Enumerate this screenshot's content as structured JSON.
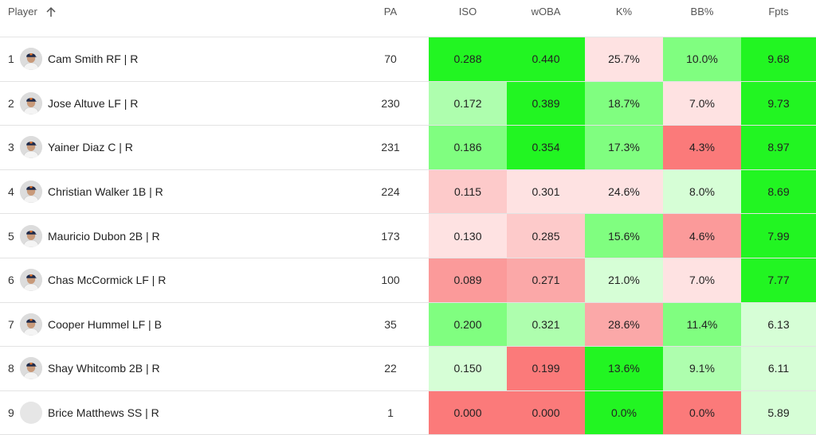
{
  "columns": {
    "player": "Player",
    "pa": "PA",
    "iso": "ISO",
    "woba": "wOBA",
    "k": "K%",
    "bb": "BB%",
    "fpts": "Fpts"
  },
  "rows": [
    {
      "rank": "1",
      "name": "Cam Smith RF | R",
      "pa": "70",
      "iso": "0.288",
      "woba": "0.440",
      "k": "25.7%",
      "bb": "10.0%",
      "fpts": "9.68",
      "has_photo": true,
      "colors": {
        "iso": "#22f522",
        "woba": "#22f522",
        "k": "#fee2e2",
        "bb": "#80fe80",
        "fpts": "#22f522"
      }
    },
    {
      "rank": "2",
      "name": "Jose Altuve LF | R",
      "pa": "230",
      "iso": "0.172",
      "woba": "0.389",
      "k": "18.7%",
      "bb": "7.0%",
      "fpts": "9.73",
      "has_photo": true,
      "colors": {
        "iso": "#aefeae",
        "woba": "#22f522",
        "k": "#80fe80",
        "bb": "#fee2e2",
        "fpts": "#22f522"
      }
    },
    {
      "rank": "3",
      "name": "Yainer Diaz C | R",
      "pa": "231",
      "iso": "0.186",
      "woba": "0.354",
      "k": "17.3%",
      "bb": "4.3%",
      "fpts": "8.97",
      "has_photo": true,
      "colors": {
        "iso": "#80fe80",
        "woba": "#22f522",
        "k": "#80fe80",
        "bb": "#fb7a7a",
        "fpts": "#22f522"
      }
    },
    {
      "rank": "4",
      "name": "Christian Walker 1B | R",
      "pa": "224",
      "iso": "0.115",
      "woba": "0.301",
      "k": "24.6%",
      "bb": "8.0%",
      "fpts": "8.69",
      "has_photo": true,
      "colors": {
        "iso": "#fdcaca",
        "woba": "#fee2e2",
        "k": "#fee2e2",
        "bb": "#d6fed6",
        "fpts": "#22f522"
      }
    },
    {
      "rank": "5",
      "name": "Mauricio Dubon 2B | R",
      "pa": "173",
      "iso": "0.130",
      "woba": "0.285",
      "k": "15.6%",
      "bb": "4.6%",
      "fpts": "7.99",
      "has_photo": true,
      "colors": {
        "iso": "#fee2e2",
        "woba": "#fdcaca",
        "k": "#80fe80",
        "bb": "#fb9a9a",
        "fpts": "#22f522"
      }
    },
    {
      "rank": "6",
      "name": "Chas McCormick LF | R",
      "pa": "100",
      "iso": "0.089",
      "woba": "0.271",
      "k": "21.0%",
      "bb": "7.0%",
      "fpts": "7.77",
      "has_photo": true,
      "colors": {
        "iso": "#fb9a9a",
        "woba": "#fba8a8",
        "k": "#d6fed6",
        "bb": "#fee2e2",
        "fpts": "#22f522"
      }
    },
    {
      "rank": "7",
      "name": "Cooper Hummel LF | B",
      "pa": "35",
      "iso": "0.200",
      "woba": "0.321",
      "k": "28.6%",
      "bb": "11.4%",
      "fpts": "6.13",
      "has_photo": true,
      "colors": {
        "iso": "#80fe80",
        "woba": "#aefeae",
        "k": "#fba8a8",
        "bb": "#80fe80",
        "fpts": "#d6fed6"
      }
    },
    {
      "rank": "8",
      "name": "Shay Whitcomb 2B | R",
      "pa": "22",
      "iso": "0.150",
      "woba": "0.199",
      "k": "13.6%",
      "bb": "9.1%",
      "fpts": "6.11",
      "has_photo": true,
      "colors": {
        "iso": "#d6fed6",
        "woba": "#fb7a7a",
        "k": "#22f522",
        "bb": "#aefeae",
        "fpts": "#d6fed6"
      }
    },
    {
      "rank": "9",
      "name": "Brice Matthews SS | R",
      "pa": "1",
      "iso": "0.000",
      "woba": "0.000",
      "k": "0.0%",
      "bb": "0.0%",
      "fpts": "5.89",
      "has_photo": false,
      "colors": {
        "iso": "#fb7a7a",
        "woba": "#fb7a7a",
        "k": "#22f522",
        "bb": "#fb7a7a",
        "fpts": "#d6fed6"
      }
    }
  ],
  "icons": {
    "sort": "arrow-up-icon",
    "player_photo": "player-headshot-icon"
  }
}
